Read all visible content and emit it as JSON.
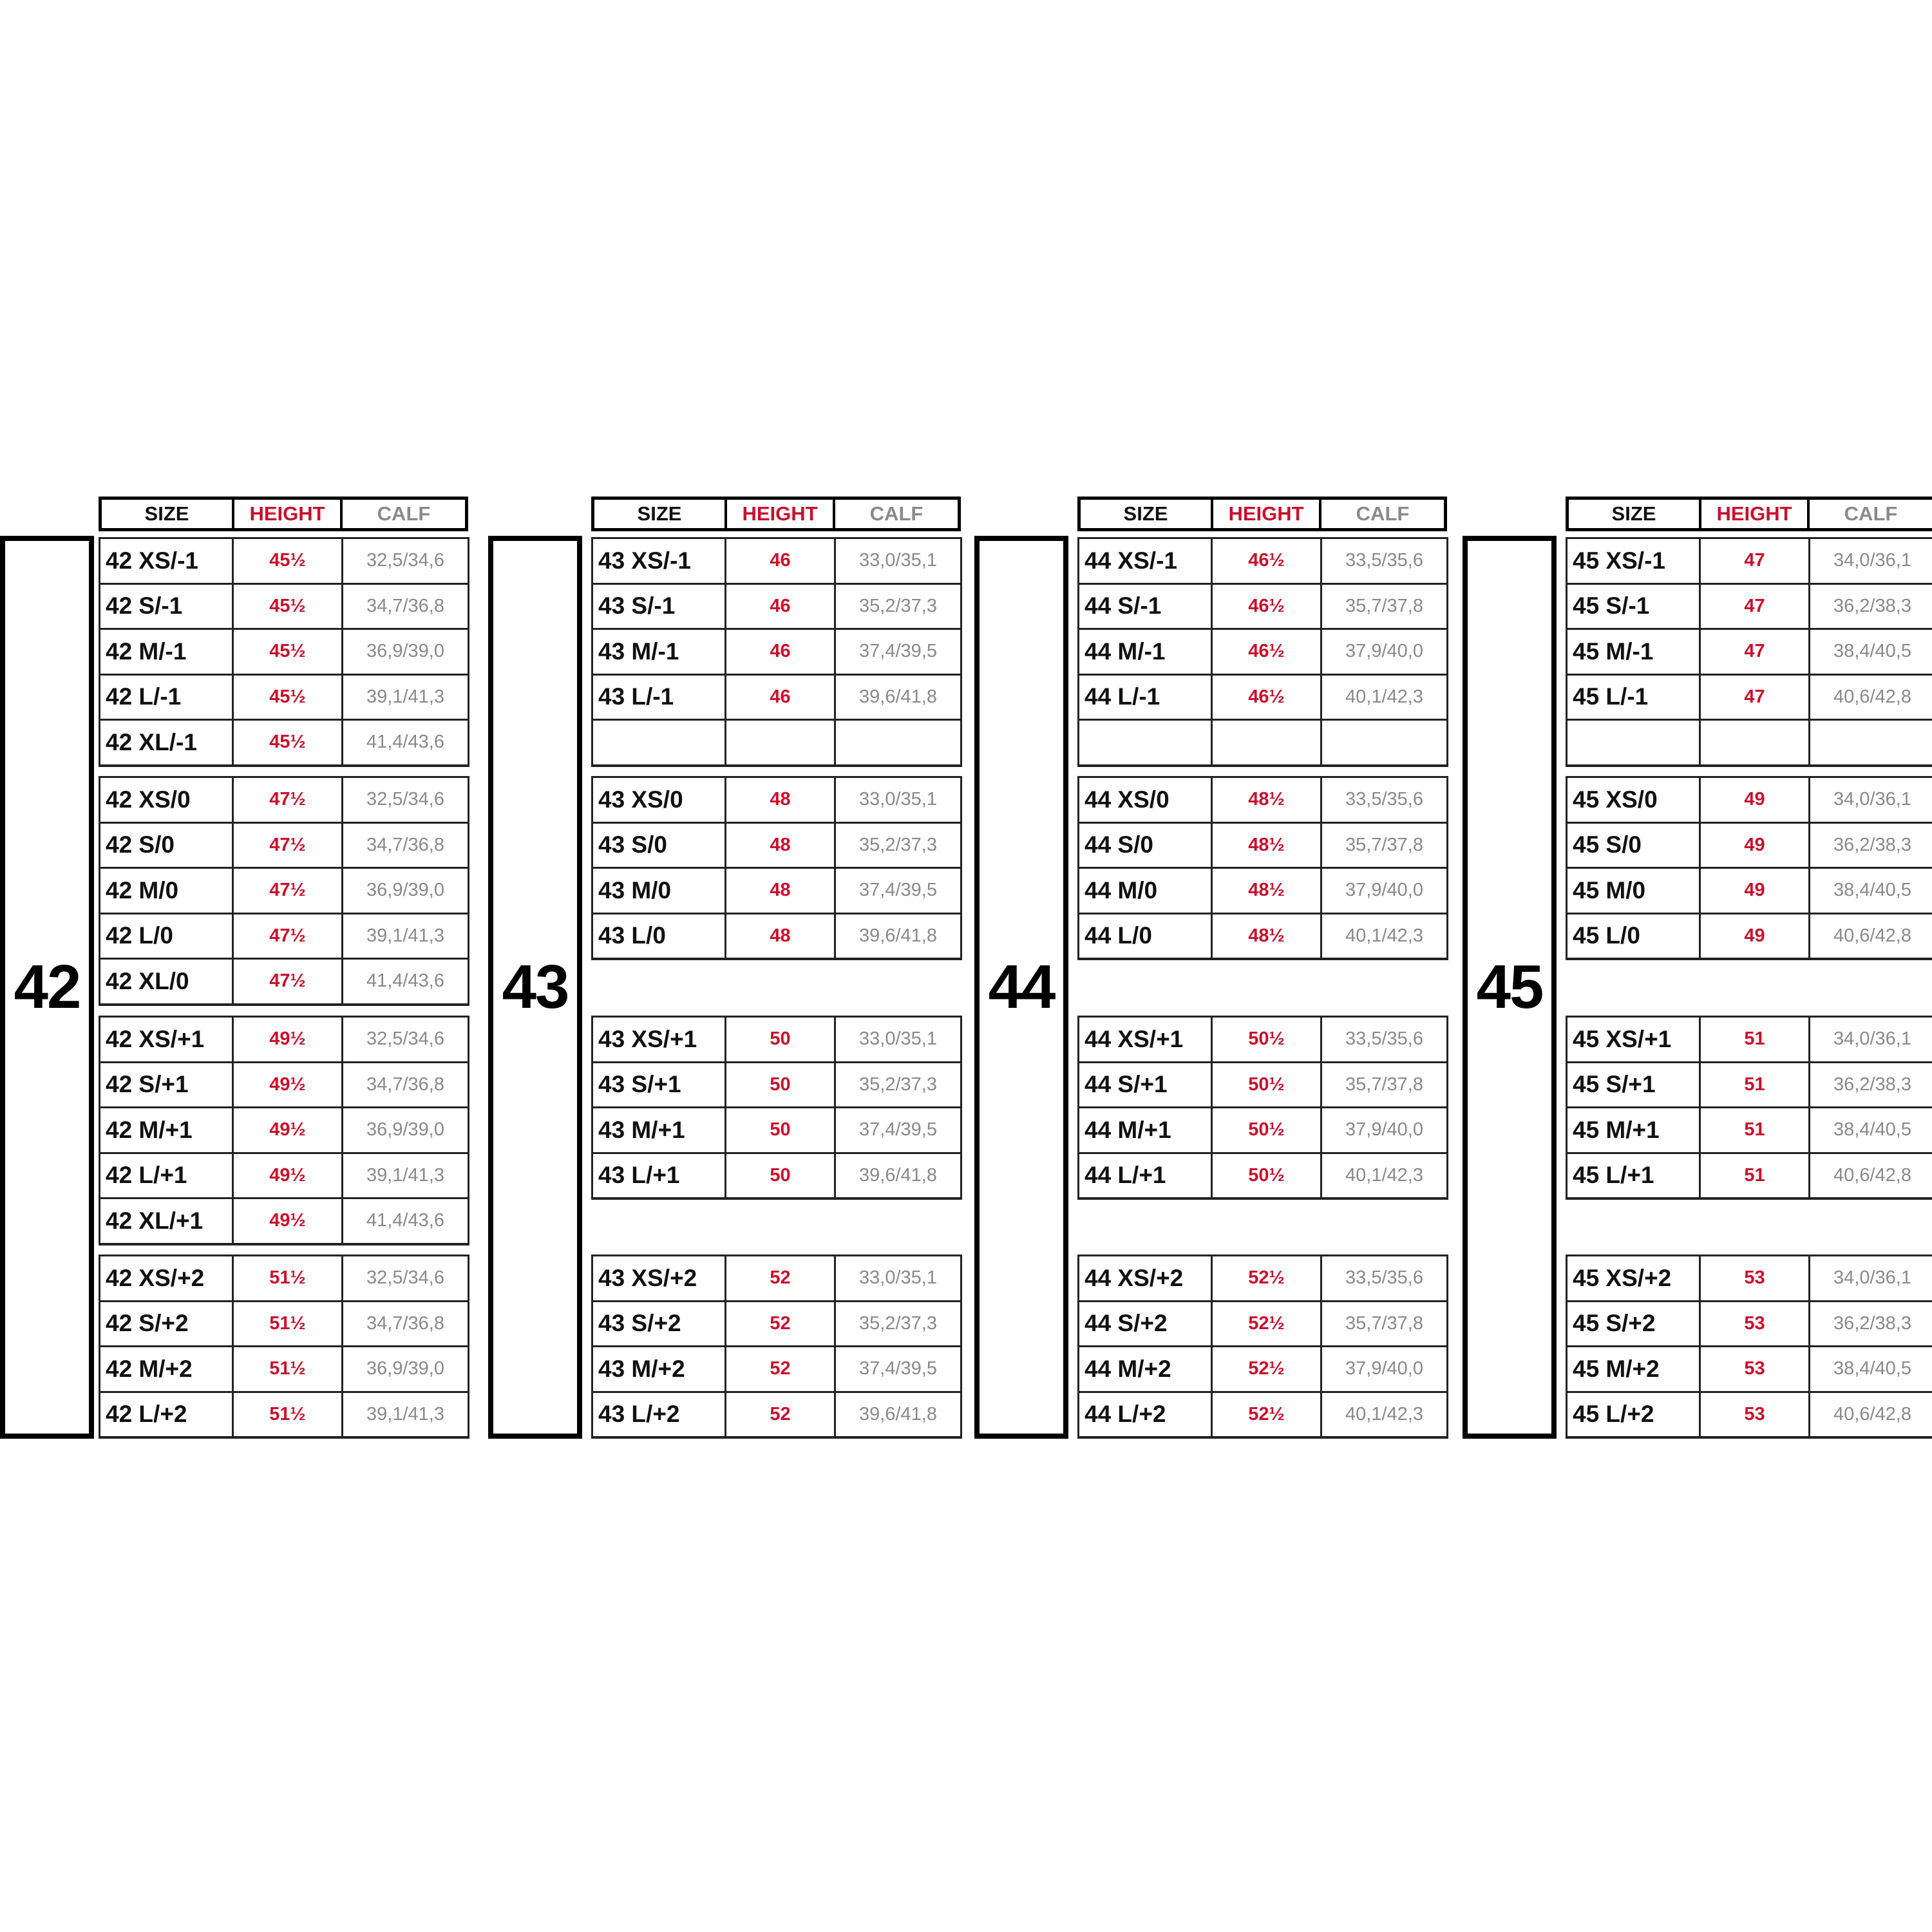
{
  "header": {
    "size": "SIZE",
    "height": "HEIGHT",
    "calf": "CALF"
  },
  "colors": {
    "height": "#c8102e",
    "calf": "#8a8a8a",
    "text": "#111111"
  },
  "panels": [
    {
      "number": "42",
      "groups": [
        [
          [
            "42 XS/-1",
            "45½",
            "32,5/34,6"
          ],
          [
            "42 S/-1",
            "45½",
            "34,7/36,8"
          ],
          [
            "42 M/-1",
            "45½",
            "36,9/39,0"
          ],
          [
            "42 L/-1",
            "45½",
            "39,1/41,3"
          ],
          [
            "42 XL/-1",
            "45½",
            "41,4/43,6"
          ]
        ],
        [
          [
            "42 XS/0",
            "47½",
            "32,5/34,6"
          ],
          [
            "42 S/0",
            "47½",
            "34,7/36,8"
          ],
          [
            "42 M/0",
            "47½",
            "36,9/39,0"
          ],
          [
            "42 L/0",
            "47½",
            "39,1/41,3"
          ],
          [
            "42 XL/0",
            "47½",
            "41,4/43,6"
          ]
        ],
        [
          [
            "42 XS/+1",
            "49½",
            "32,5/34,6"
          ],
          [
            "42 S/+1",
            "49½",
            "34,7/36,8"
          ],
          [
            "42 M/+1",
            "49½",
            "36,9/39,0"
          ],
          [
            "42 L/+1",
            "49½",
            "39,1/41,3"
          ],
          [
            "42 XL/+1",
            "49½",
            "41,4/43,6"
          ]
        ],
        [
          [
            "42 XS/+2",
            "51½",
            "32,5/34,6"
          ],
          [
            "42 S/+2",
            "51½",
            "34,7/36,8"
          ],
          [
            "42 M/+2",
            "51½",
            "36,9/39,0"
          ],
          [
            "42 L/+2",
            "51½",
            "39,1/41,3"
          ]
        ]
      ]
    },
    {
      "number": "43",
      "groups": [
        [
          [
            "43 XS/-1",
            "46",
            "33,0/35,1"
          ],
          [
            "43 S/-1",
            "46",
            "35,2/37,3"
          ],
          [
            "43 M/-1",
            "46",
            "37,4/39,5"
          ],
          [
            "43 L/-1",
            "46",
            "39,6/41,8"
          ],
          [
            "",
            "",
            ""
          ]
        ],
        [
          [
            "43 XS/0",
            "48",
            "33,0/35,1"
          ],
          [
            "43 S/0",
            "48",
            "35,2/37,3"
          ],
          [
            "43 M/0",
            "48",
            "37,4/39,5"
          ],
          [
            "43 L/0",
            "48",
            "39,6/41,8"
          ]
        ],
        [
          [
            "43 XS/+1",
            "50",
            "33,0/35,1"
          ],
          [
            "43 S/+1",
            "50",
            "35,2/37,3"
          ],
          [
            "43 M/+1",
            "50",
            "37,4/39,5"
          ],
          [
            "43 L/+1",
            "50",
            "39,6/41,8"
          ]
        ],
        [
          [
            "43 XS/+2",
            "52",
            "33,0/35,1"
          ],
          [
            "43 S/+2",
            "52",
            "35,2/37,3"
          ],
          [
            "43 M/+2",
            "52",
            "37,4/39,5"
          ],
          [
            "43 L/+2",
            "52",
            "39,6/41,8"
          ]
        ]
      ]
    },
    {
      "number": "44",
      "groups": [
        [
          [
            "44 XS/-1",
            "46½",
            "33,5/35,6"
          ],
          [
            "44 S/-1",
            "46½",
            "35,7/37,8"
          ],
          [
            "44 M/-1",
            "46½",
            "37,9/40,0"
          ],
          [
            "44 L/-1",
            "46½",
            "40,1/42,3"
          ],
          [
            "",
            "",
            ""
          ]
        ],
        [
          [
            "44 XS/0",
            "48½",
            "33,5/35,6"
          ],
          [
            "44 S/0",
            "48½",
            "35,7/37,8"
          ],
          [
            "44 M/0",
            "48½",
            "37,9/40,0"
          ],
          [
            "44 L/0",
            "48½",
            "40,1/42,3"
          ]
        ],
        [
          [
            "44 XS/+1",
            "50½",
            "33,5/35,6"
          ],
          [
            "44 S/+1",
            "50½",
            "35,7/37,8"
          ],
          [
            "44 M/+1",
            "50½",
            "37,9/40,0"
          ],
          [
            "44 L/+1",
            "50½",
            "40,1/42,3"
          ]
        ],
        [
          [
            "44 XS/+2",
            "52½",
            "33,5/35,6"
          ],
          [
            "44 S/+2",
            "52½",
            "35,7/37,8"
          ],
          [
            "44 M/+2",
            "52½",
            "37,9/40,0"
          ],
          [
            "44 L/+2",
            "52½",
            "40,1/42,3"
          ]
        ]
      ]
    },
    {
      "number": "45",
      "groups": [
        [
          [
            "45 XS/-1",
            "47",
            "34,0/36,1"
          ],
          [
            "45 S/-1",
            "47",
            "36,2/38,3"
          ],
          [
            "45 M/-1",
            "47",
            "38,4/40,5"
          ],
          [
            "45 L/-1",
            "47",
            "40,6/42,8"
          ],
          [
            "",
            "",
            ""
          ]
        ],
        [
          [
            "45 XS/0",
            "49",
            "34,0/36,1"
          ],
          [
            "45 S/0",
            "49",
            "36,2/38,3"
          ],
          [
            "45 M/0",
            "49",
            "38,4/40,5"
          ],
          [
            "45 L/0",
            "49",
            "40,6/42,8"
          ]
        ],
        [
          [
            "45 XS/+1",
            "51",
            "34,0/36,1"
          ],
          [
            "45 S/+1",
            "51",
            "36,2/38,3"
          ],
          [
            "45 M/+1",
            "51",
            "38,4/40,5"
          ],
          [
            "45 L/+1",
            "51",
            "40,6/42,8"
          ]
        ],
        [
          [
            "45 XS/+2",
            "53",
            "34,0/36,1"
          ],
          [
            "45 S/+2",
            "53",
            "36,2/38,3"
          ],
          [
            "45 M/+2",
            "53",
            "38,4/40,5"
          ],
          [
            "45 L/+2",
            "53",
            "40,6/42,8"
          ]
        ]
      ]
    }
  ]
}
